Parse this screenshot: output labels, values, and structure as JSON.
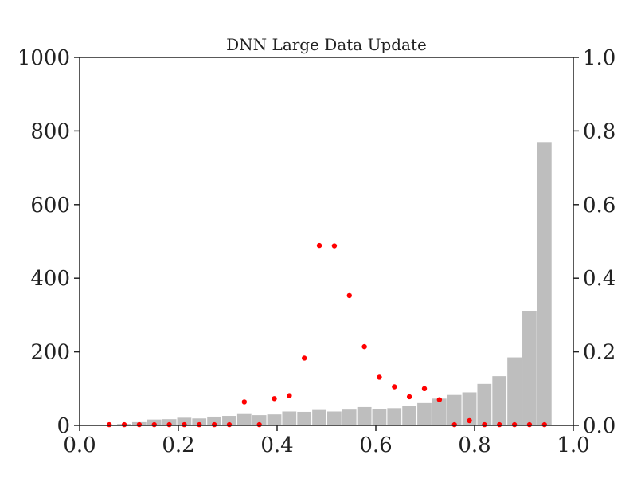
{
  "chart_data": {
    "type": "bar",
    "title": "DNN Large Data Update",
    "xlabel": "",
    "ylabel": "",
    "xlim": [
      0.0,
      1.0
    ],
    "ylim": [
      0,
      1000
    ],
    "y2lim": [
      0.0,
      1.0
    ],
    "x_ticks": [
      "0.0",
      "0.2",
      "0.4",
      "0.6",
      "0.8",
      "1.0"
    ],
    "y_ticks": [
      "0",
      "200",
      "400",
      "600",
      "800",
      "1000"
    ],
    "y2_ticks": [
      "0.0",
      "0.2",
      "0.4",
      "0.6",
      "0.8",
      "1.0"
    ],
    "grid": false,
    "bin_width": 0.0304,
    "bars": [
      {
        "x": 0.0904,
        "value": 5
      },
      {
        "x": 0.1208,
        "value": 10
      },
      {
        "x": 0.1512,
        "value": 17
      },
      {
        "x": 0.1816,
        "value": 18
      },
      {
        "x": 0.212,
        "value": 22
      },
      {
        "x": 0.2424,
        "value": 20
      },
      {
        "x": 0.2728,
        "value": 25
      },
      {
        "x": 0.3032,
        "value": 27
      },
      {
        "x": 0.3336,
        "value": 32
      },
      {
        "x": 0.364,
        "value": 29
      },
      {
        "x": 0.3944,
        "value": 31
      },
      {
        "x": 0.4248,
        "value": 39
      },
      {
        "x": 0.4552,
        "value": 38
      },
      {
        "x": 0.4856,
        "value": 43
      },
      {
        "x": 0.516,
        "value": 39
      },
      {
        "x": 0.5464,
        "value": 44
      },
      {
        "x": 0.5768,
        "value": 51
      },
      {
        "x": 0.6072,
        "value": 46
      },
      {
        "x": 0.6376,
        "value": 48
      },
      {
        "x": 0.668,
        "value": 53
      },
      {
        "x": 0.6984,
        "value": 62
      },
      {
        "x": 0.7288,
        "value": 74
      },
      {
        "x": 0.7592,
        "value": 84
      },
      {
        "x": 0.7896,
        "value": 91
      },
      {
        "x": 0.82,
        "value": 114
      },
      {
        "x": 0.8504,
        "value": 135
      },
      {
        "x": 0.8808,
        "value": 186
      },
      {
        "x": 0.9112,
        "value": 312
      },
      {
        "x": 0.9416,
        "value": 771
      }
    ],
    "points": [
      {
        "x": 0.06,
        "y": 0.002
      },
      {
        "x": 0.0904,
        "y": 0.002
      },
      {
        "x": 0.1208,
        "y": 0.002
      },
      {
        "x": 0.1512,
        "y": 0.002
      },
      {
        "x": 0.1816,
        "y": 0.002
      },
      {
        "x": 0.212,
        "y": 0.002
      },
      {
        "x": 0.2424,
        "y": 0.002
      },
      {
        "x": 0.2728,
        "y": 0.002
      },
      {
        "x": 0.3032,
        "y": 0.002
      },
      {
        "x": 0.3336,
        "y": 0.064
      },
      {
        "x": 0.364,
        "y": 0.002
      },
      {
        "x": 0.3944,
        "y": 0.073
      },
      {
        "x": 0.4248,
        "y": 0.081
      },
      {
        "x": 0.4552,
        "y": 0.183
      },
      {
        "x": 0.4856,
        "y": 0.489
      },
      {
        "x": 0.516,
        "y": 0.488
      },
      {
        "x": 0.5464,
        "y": 0.353
      },
      {
        "x": 0.5768,
        "y": 0.214
      },
      {
        "x": 0.6072,
        "y": 0.131
      },
      {
        "x": 0.6376,
        "y": 0.105
      },
      {
        "x": 0.668,
        "y": 0.078
      },
      {
        "x": 0.6984,
        "y": 0.1
      },
      {
        "x": 0.7288,
        "y": 0.07
      },
      {
        "x": 0.7592,
        "y": 0.002
      },
      {
        "x": 0.7896,
        "y": 0.013
      },
      {
        "x": 0.82,
        "y": 0.002
      },
      {
        "x": 0.8504,
        "y": 0.002
      },
      {
        "x": 0.8808,
        "y": 0.002
      },
      {
        "x": 0.9112,
        "y": 0.002
      },
      {
        "x": 0.9416,
        "y": 0.002
      }
    ],
    "colors": {
      "bars": "#bebebe",
      "points": "#ff0000",
      "axis": "#222222"
    }
  }
}
